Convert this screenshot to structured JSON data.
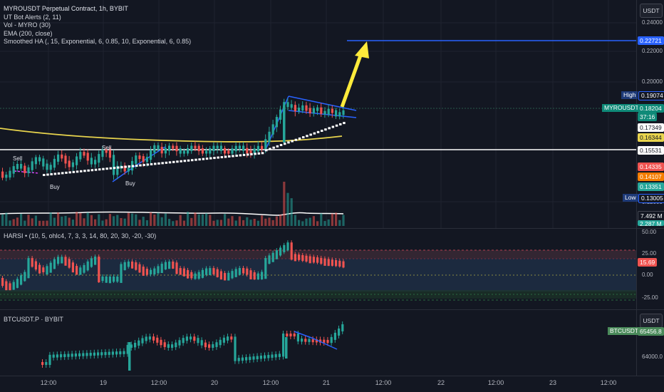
{
  "main": {
    "legend": {
      "title": "MYROUSDT Perpetual Contract, 1h, BYBIT",
      "line1": "UT Bot Alerts (2, 11)",
      "line2": "Vol - MYRO (30)",
      "line3": "EMA (200, close)",
      "line4": "Smoothed HA (, 15, Exponential, 6, 0.85, 10, Exponential, 6, 0.85)"
    },
    "currency_button": "USDT",
    "price_ticks": [
      "0.24000",
      "0.22000",
      "0.20000",
      "0.12000"
    ],
    "target_tag": "0.22721",
    "high_label": "High",
    "high_value": "0.19074",
    "symbol_tag": "MYROUSDT.P",
    "symbol_price": "0.18204",
    "countdown": "37:16",
    "tag_white": "0.17349",
    "tag_yellow": "0.16344",
    "tag_white2": "0.15531",
    "tag_red": "0.14335",
    "tag_orange": "0.14107",
    "tag_green": "0.13351",
    "low_label": "Low",
    "low_value": "0.13005",
    "volume_tag": "7.492 M",
    "volume_tag2": "2.287 M",
    "signals": {
      "sell1": "Sell",
      "sell2": "Sell",
      "buy1": "Buy",
      "buy2": "Buy"
    },
    "colors": {
      "bull": "#26a69a",
      "bear": "#ef5350",
      "ema": "#e8d44d",
      "pattern": "#2962ff",
      "arrow": "#ffeb3b",
      "target": "#2962ff"
    }
  },
  "harsi": {
    "legend": "HARSI • (10, 5, ohlc4, 7, 3, 3, 14, 80, 20, 30, -20, -30)",
    "ticks": [
      "50.00",
      "25.00",
      "0.00",
      "-25.00"
    ],
    "value_tag": "15.69"
  },
  "btc": {
    "legend": "BTCUSDT.P · BYBIT",
    "currency_button": "USDT",
    "symbol_tag": "BTCUSDT.P",
    "price_tag": "65456.8",
    "tick": "64000.0"
  },
  "time_axis": [
    "12:00",
    "19",
    "12:00",
    "20",
    "12:00",
    "21",
    "12:00",
    "22",
    "12:00",
    "23",
    "12:00"
  ]
}
